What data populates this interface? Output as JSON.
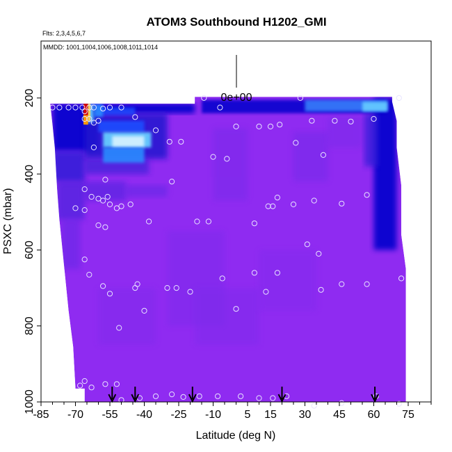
{
  "chart_data": {
    "type": "heatmap",
    "title": "ATOM3 Southbound H1202_GMI",
    "subtitle_flights": "Flts: 2,3,4,5,6,7",
    "subtitle_dates": "MMDD: 1001,1004,1006,1008,1011,1014",
    "xlabel": "Latitude (deg N)",
    "ylabel": "PSXC (mbar)",
    "xlim": [
      -85,
      85
    ],
    "ylim_inverted": [
      1000,
      50
    ],
    "x_tick_labels": [
      "-85",
      "-70",
      "-55",
      "-40",
      "-25",
      "-10",
      "5",
      "15",
      "30",
      "45",
      "60",
      "75"
    ],
    "x_tick_values": [
      -85,
      -70,
      -55,
      -40,
      -25,
      -10,
      5,
      15,
      30,
      45,
      60,
      75
    ],
    "x_minor_ticks": [
      -80,
      -75,
      -65,
      -60,
      -50,
      -45,
      -35,
      -30,
      -20,
      -15,
      -5,
      0,
      10,
      20,
      25,
      35,
      40,
      50,
      55,
      65,
      70,
      80,
      85
    ],
    "y_tick_labels": [
      "200",
      "400",
      "600",
      "800",
      "1000"
    ],
    "y_tick_values": [
      200,
      400,
      600,
      800,
      1000
    ],
    "colorbar_label": "0e+00",
    "arrow_latitudes": [
      -54,
      -44,
      -19,
      20,
      60.5
    ],
    "colors": {
      "background": "#8f2bf1",
      "deep_blue": "#0000cc",
      "mid_blue": "#1a4dff",
      "light_blue": "#66ccff",
      "cyan_white": "#d9f3ff",
      "red": "#d40000",
      "orange": "#ff9a00",
      "circle": "#e8e4ff"
    },
    "observations": [
      [
        -80,
        225
      ],
      [
        -77,
        225
      ],
      [
        -73,
        225
      ],
      [
        -70,
        225
      ],
      [
        -67,
        225
      ],
      [
        -66,
        235
      ],
      [
        -64,
        225
      ],
      [
        -62,
        225
      ],
      [
        -58,
        228
      ],
      [
        -55,
        225
      ],
      [
        -50,
        225
      ],
      [
        -44,
        250
      ],
      [
        -66,
        255
      ],
      [
        -64,
        255
      ],
      [
        -62,
        265
      ],
      [
        -60,
        260
      ],
      [
        -35,
        285
      ],
      [
        -29,
        315
      ],
      [
        -24,
        315
      ],
      [
        -14,
        200
      ],
      [
        -7,
        225
      ],
      [
        0,
        275
      ],
      [
        10,
        275
      ],
      [
        15,
        275
      ],
      [
        19,
        270
      ],
      [
        28,
        200
      ],
      [
        -62,
        330
      ],
      [
        -57,
        415
      ],
      [
        -10,
        355
      ],
      [
        -4,
        360
      ],
      [
        26,
        318
      ],
      [
        33,
        260
      ],
      [
        38,
        350
      ],
      [
        43,
        260
      ],
      [
        50,
        262
      ],
      [
        60,
        255
      ],
      [
        71,
        200
      ],
      [
        -66,
        440
      ],
      [
        -63,
        460
      ],
      [
        -60,
        465
      ],
      [
        -58,
        470
      ],
      [
        -56,
        460
      ],
      [
        -55,
        480
      ],
      [
        -52,
        490
      ],
      [
        -50,
        485
      ],
      [
        -46,
        480
      ],
      [
        -28,
        420
      ],
      [
        -12,
        525
      ],
      [
        14,
        485
      ],
      [
        18,
        462
      ],
      [
        25,
        480
      ],
      [
        34,
        470
      ],
      [
        46,
        478
      ],
      [
        57,
        455
      ],
      [
        -70,
        490
      ],
      [
        -66,
        495
      ],
      [
        -60,
        535
      ],
      [
        -57,
        540
      ],
      [
        -38,
        525
      ],
      [
        -17,
        525
      ],
      [
        8,
        530
      ],
      [
        16,
        485
      ],
      [
        -66,
        625
      ],
      [
        -64,
        665
      ],
      [
        -58,
        695
      ],
      [
        -55,
        715
      ],
      [
        -44,
        700
      ],
      [
        -43,
        690
      ],
      [
        -40,
        760
      ],
      [
        -30,
        700
      ],
      [
        -26,
        700
      ],
      [
        -20,
        710
      ],
      [
        -6,
        675
      ],
      [
        0,
        755
      ],
      [
        8,
        660
      ],
      [
        13,
        710
      ],
      [
        18,
        660
      ],
      [
        31,
        585
      ],
      [
        36,
        610
      ],
      [
        37,
        705
      ],
      [
        46,
        690
      ],
      [
        57,
        690
      ],
      [
        72,
        675
      ],
      [
        -51,
        805
      ],
      [
        -66,
        945
      ],
      [
        -68,
        957
      ],
      [
        -63,
        962
      ],
      [
        -57,
        953
      ],
      [
        -52,
        953
      ],
      [
        -50,
        995
      ],
      [
        -42,
        990
      ],
      [
        -35,
        985
      ],
      [
        -28,
        980
      ],
      [
        -23,
        987
      ],
      [
        -16,
        985
      ],
      [
        -8,
        985
      ],
      [
        2,
        985
      ],
      [
        10,
        990
      ],
      [
        16,
        990
      ],
      [
        22,
        985
      ],
      [
        34,
        1010
      ],
      [
        46,
        1003
      ],
      [
        61,
        985
      ],
      [
        71,
        1005
      ]
    ]
  }
}
